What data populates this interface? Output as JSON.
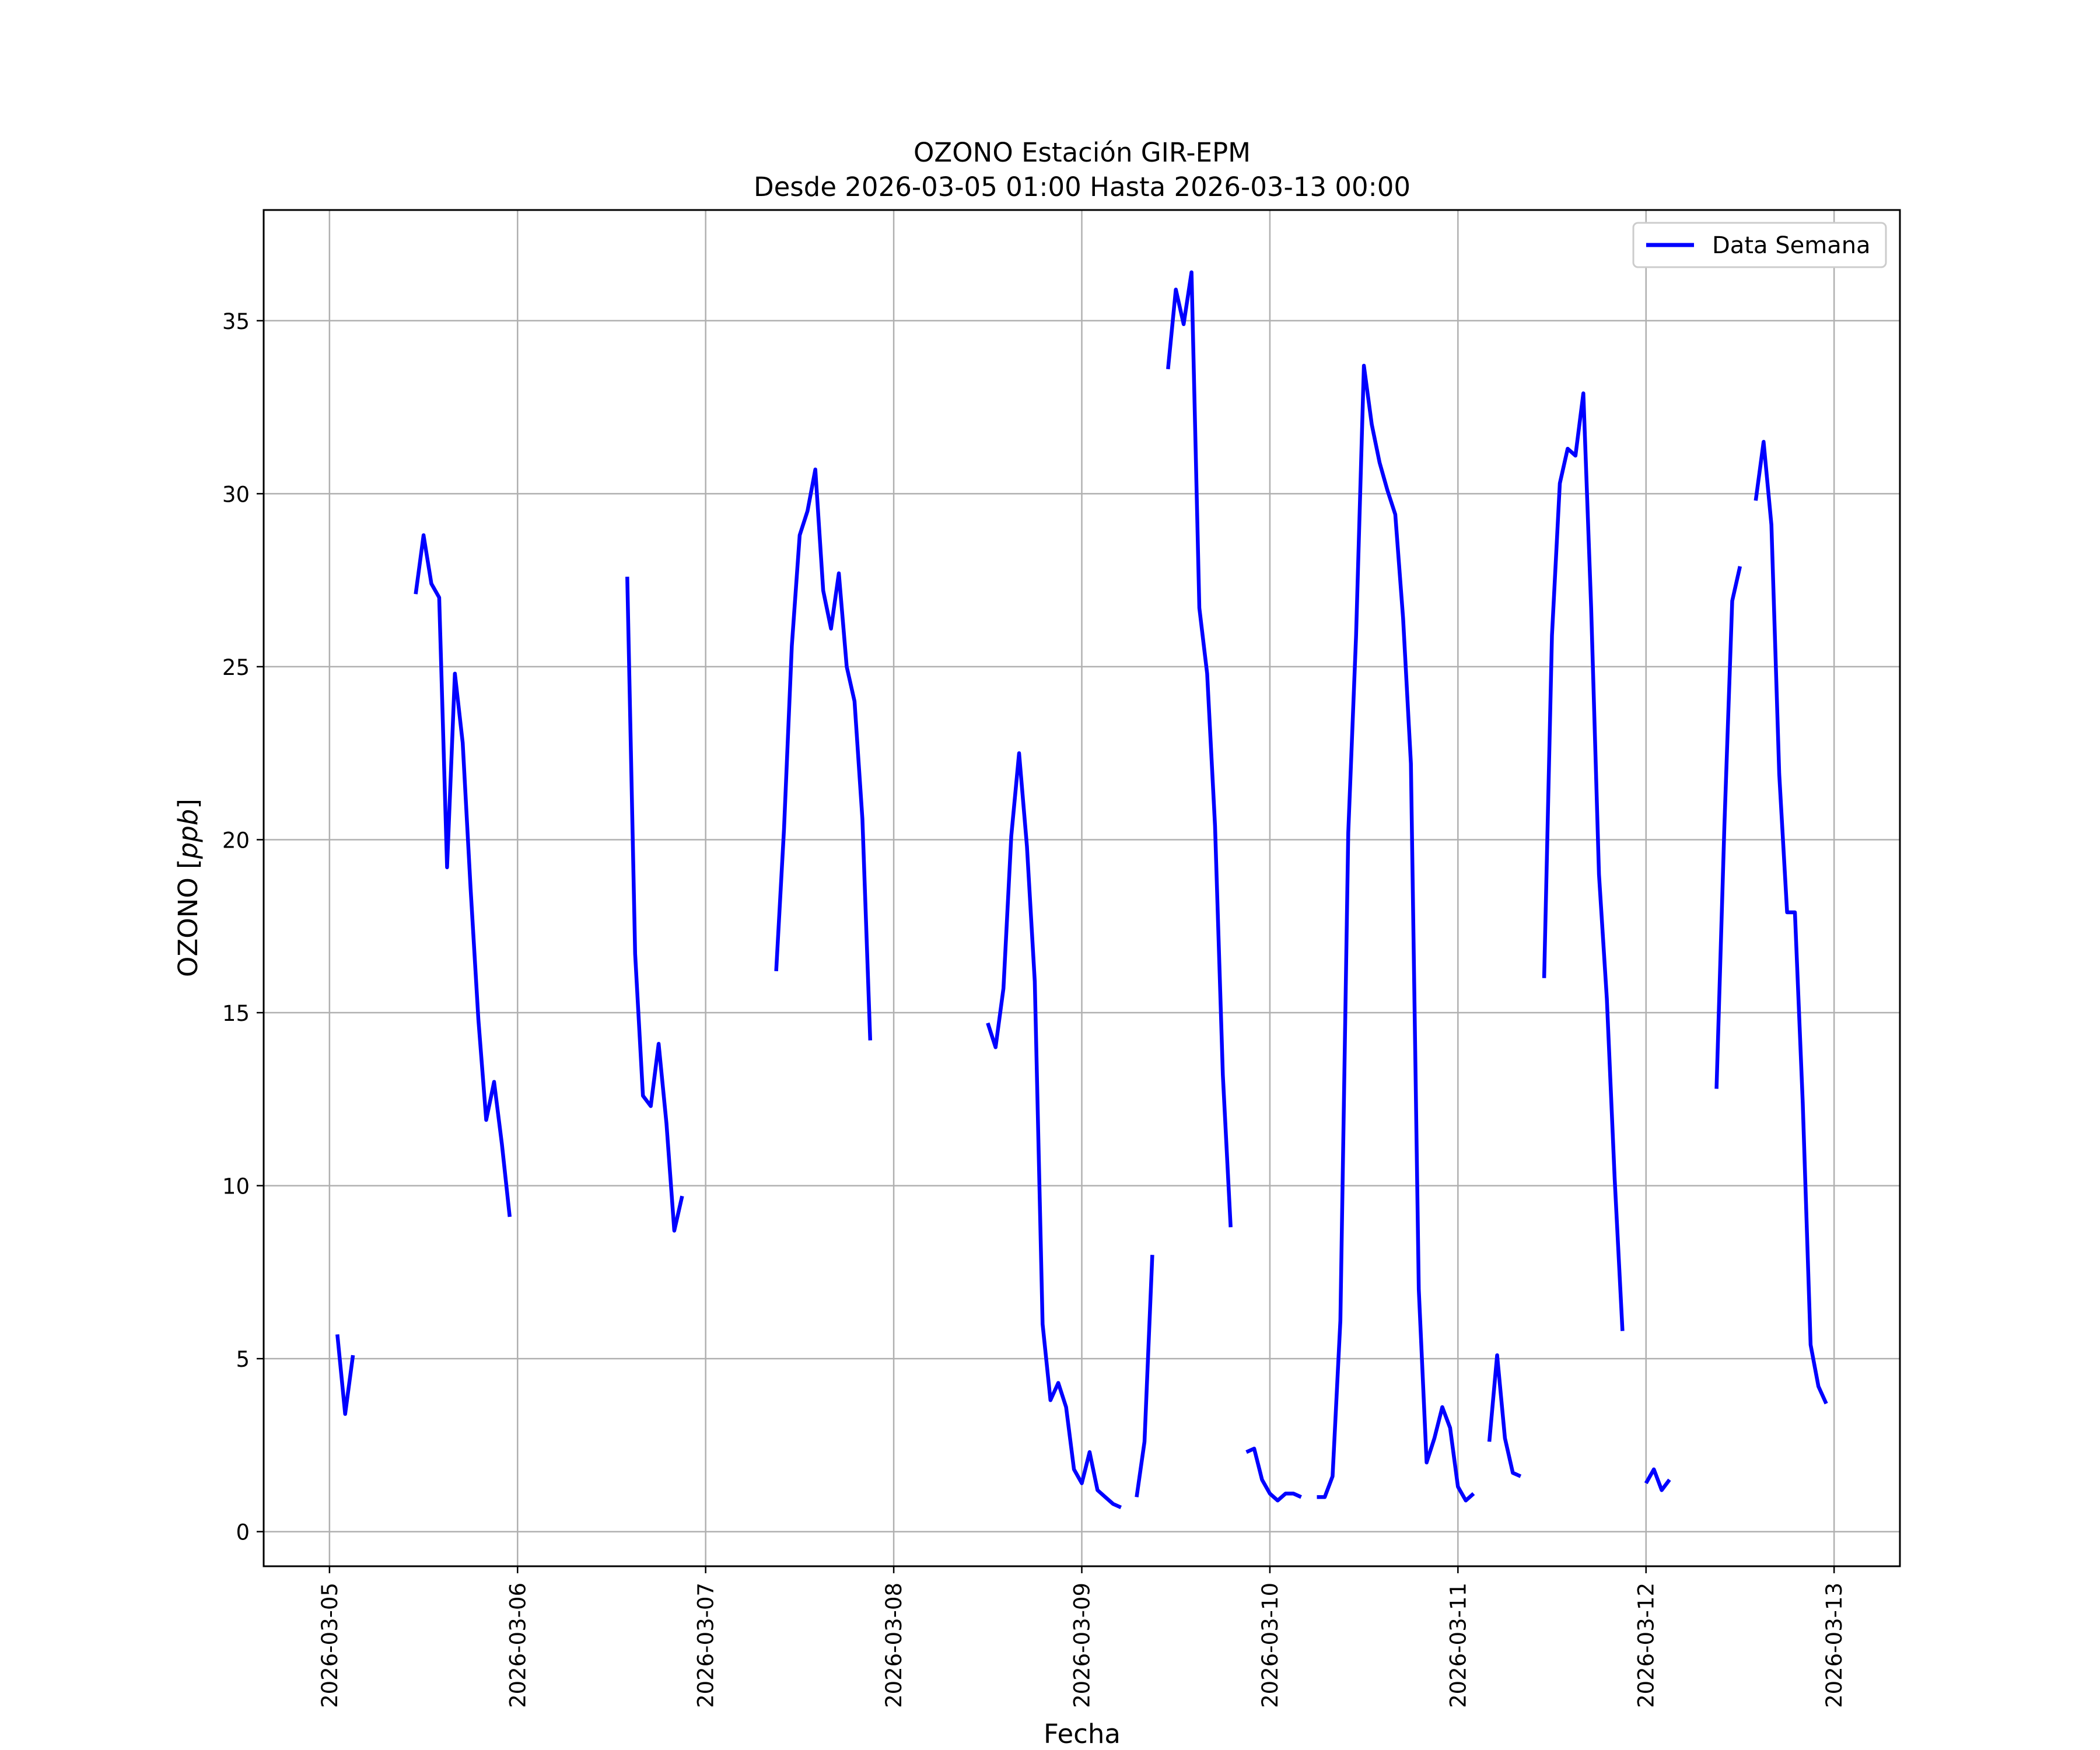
{
  "chart_data": {
    "type": "line",
    "title": "OZONO Estación GIR-EPM",
    "subtitle": "Desde 2026-03-05 01:00 Hasta 2026-03-13 00:00",
    "xlabel": "Fecha",
    "ylabel": "OZONO [ppb]",
    "ylabel_prefix": "OZONO [",
    "ylabel_unit": "ppb",
    "ylabel_suffix": "]",
    "x_range_days": [
      -0.35,
      8.35
    ],
    "ylim": [
      -1.0,
      38.2
    ],
    "yticks": [
      0,
      5,
      10,
      15,
      20,
      25,
      30,
      35
    ],
    "xticks": [
      "2026-03-05",
      "2026-03-06",
      "2026-03-07",
      "2026-03-08",
      "2026-03-09",
      "2026-03-10",
      "2026-03-11",
      "2026-03-12",
      "2026-03-13"
    ],
    "grid": true,
    "legend_position": "top-right",
    "series": [
      {
        "name": "Data Semana",
        "color": "#0000ff",
        "points": [
          [
            "2026-03-05 01:00",
            5.7
          ],
          [
            "2026-03-05 02:00",
            3.4
          ],
          [
            "2026-03-05 03:00",
            5.1
          ],
          [
            "2026-03-05 11:00",
            27.1
          ],
          [
            "2026-03-05 12:00",
            28.8
          ],
          [
            "2026-03-05 13:00",
            27.4
          ],
          [
            "2026-03-05 14:00",
            27.0
          ],
          [
            "2026-03-05 15:00",
            19.2
          ],
          [
            "2026-03-05 16:00",
            24.8
          ],
          [
            "2026-03-05 17:00",
            22.8
          ],
          [
            "2026-03-05 18:00",
            18.6
          ],
          [
            "2026-03-05 19:00",
            14.8
          ],
          [
            "2026-03-05 20:00",
            11.9
          ],
          [
            "2026-03-05 21:00",
            13.0
          ],
          [
            "2026-03-05 22:00",
            11.2
          ],
          [
            "2026-03-05 23:00",
            9.1
          ],
          [
            "2026-03-06 14:00",
            27.6
          ],
          [
            "2026-03-06 15:00",
            16.7
          ],
          [
            "2026-03-06 16:00",
            12.6
          ],
          [
            "2026-03-06 17:00",
            12.3
          ],
          [
            "2026-03-06 18:00",
            14.1
          ],
          [
            "2026-03-06 19:00",
            11.8
          ],
          [
            "2026-03-06 20:00",
            8.7
          ],
          [
            "2026-03-06 21:00",
            9.7
          ],
          [
            "2026-03-07 09:00",
            16.2
          ],
          [
            "2026-03-07 10:00",
            20.3
          ],
          [
            "2026-03-07 11:00",
            25.6
          ],
          [
            "2026-03-07 12:00",
            28.8
          ],
          [
            "2026-03-07 13:00",
            29.5
          ],
          [
            "2026-03-07 14:00",
            30.7
          ],
          [
            "2026-03-07 15:00",
            27.2
          ],
          [
            "2026-03-07 16:00",
            26.1
          ],
          [
            "2026-03-07 17:00",
            27.7
          ],
          [
            "2026-03-07 18:00",
            25.0
          ],
          [
            "2026-03-07 19:00",
            24.0
          ],
          [
            "2026-03-07 20:00",
            20.6
          ],
          [
            "2026-03-07 21:00",
            14.2
          ],
          [
            "2026-03-08 12:00",
            14.7
          ],
          [
            "2026-03-08 13:00",
            14.0
          ],
          [
            "2026-03-08 14:00",
            15.7
          ],
          [
            "2026-03-08 15:00",
            20.1
          ],
          [
            "2026-03-08 16:00",
            22.5
          ],
          [
            "2026-03-08 17:00",
            19.8
          ],
          [
            "2026-03-08 18:00",
            15.9
          ],
          [
            "2026-03-08 19:00",
            6.0
          ],
          [
            "2026-03-08 20:00",
            3.8
          ],
          [
            "2026-03-08 21:00",
            4.3
          ],
          [
            "2026-03-08 22:00",
            3.6
          ],
          [
            "2026-03-08 23:00",
            1.8
          ],
          [
            "2026-03-09 00:00",
            1.4
          ],
          [
            "2026-03-09 01:00",
            2.3
          ],
          [
            "2026-03-09 02:00",
            1.2
          ],
          [
            "2026-03-09 03:00",
            1.0
          ],
          [
            "2026-03-09 04:00",
            0.8
          ],
          [
            "2026-03-09 05:00",
            0.7
          ],
          [
            "2026-03-09 07:00",
            1.0
          ],
          [
            "2026-03-09 08:00",
            2.6
          ],
          [
            "2026-03-09 09:00",
            8.0
          ],
          [
            "2026-03-09 11:00",
            33.6
          ],
          [
            "2026-03-09 12:00",
            35.9
          ],
          [
            "2026-03-09 13:00",
            34.9
          ],
          [
            "2026-03-09 14:00",
            36.4
          ],
          [
            "2026-03-09 15:00",
            26.7
          ],
          [
            "2026-03-09 16:00",
            24.8
          ],
          [
            "2026-03-09 17:00",
            20.4
          ],
          [
            "2026-03-09 18:00",
            13.2
          ],
          [
            "2026-03-09 19:00",
            8.8
          ],
          [
            "2026-03-09 21:00",
            2.3
          ],
          [
            "2026-03-09 22:00",
            2.4
          ],
          [
            "2026-03-09 23:00",
            1.5
          ],
          [
            "2026-03-10 00:00",
            1.1
          ],
          [
            "2026-03-10 01:00",
            0.9
          ],
          [
            "2026-03-10 02:00",
            1.1
          ],
          [
            "2026-03-10 03:00",
            1.1
          ],
          [
            "2026-03-10 04:00",
            1.0
          ],
          [
            "2026-03-10 06:00",
            1.0
          ],
          [
            "2026-03-10 07:00",
            1.0
          ],
          [
            "2026-03-10 08:00",
            1.6
          ],
          [
            "2026-03-10 09:00",
            6.1
          ],
          [
            "2026-03-10 10:00",
            20.2
          ],
          [
            "2026-03-10 11:00",
            25.9
          ],
          [
            "2026-03-10 12:00",
            33.7
          ],
          [
            "2026-03-10 13:00",
            32.0
          ],
          [
            "2026-03-10 14:00",
            30.9
          ],
          [
            "2026-03-10 15:00",
            30.1
          ],
          [
            "2026-03-10 16:00",
            29.4
          ],
          [
            "2026-03-10 17:00",
            26.4
          ],
          [
            "2026-03-10 18:00",
            22.2
          ],
          [
            "2026-03-10 19:00",
            7.0
          ],
          [
            "2026-03-10 20:00",
            2.0
          ],
          [
            "2026-03-10 21:00",
            2.7
          ],
          [
            "2026-03-10 22:00",
            3.6
          ],
          [
            "2026-03-10 23:00",
            3.0
          ],
          [
            "2026-03-11 00:00",
            1.3
          ],
          [
            "2026-03-11 01:00",
            0.9
          ],
          [
            "2026-03-11 02:00",
            1.1
          ],
          [
            "2026-03-11 04:00",
            2.6
          ],
          [
            "2026-03-11 05:00",
            5.1
          ],
          [
            "2026-03-11 06:00",
            2.7
          ],
          [
            "2026-03-11 07:00",
            1.7
          ],
          [
            "2026-03-11 08:00",
            1.6
          ],
          [
            "2026-03-11 11:00",
            16.0
          ],
          [
            "2026-03-11 12:00",
            25.9
          ],
          [
            "2026-03-11 13:00",
            30.3
          ],
          [
            "2026-03-11 14:00",
            31.3
          ],
          [
            "2026-03-11 15:00",
            31.1
          ],
          [
            "2026-03-11 16:00",
            32.9
          ],
          [
            "2026-03-11 17:00",
            26.7
          ],
          [
            "2026-03-11 18:00",
            19.0
          ],
          [
            "2026-03-11 19:00",
            15.4
          ],
          [
            "2026-03-11 20:00",
            10.2
          ],
          [
            "2026-03-11 21:00",
            5.8
          ],
          [
            "2026-03-12 00:00",
            1.4
          ],
          [
            "2026-03-12 01:00",
            1.8
          ],
          [
            "2026-03-12 02:00",
            1.2
          ],
          [
            "2026-03-12 03:00",
            1.5
          ],
          [
            "2026-03-12 09:00",
            12.8
          ],
          [
            "2026-03-12 10:00",
            20.4
          ],
          [
            "2026-03-12 11:00",
            26.9
          ],
          [
            "2026-03-12 12:00",
            27.9
          ],
          [
            "2026-03-12 14:00",
            29.8
          ],
          [
            "2026-03-12 15:00",
            31.5
          ],
          [
            "2026-03-12 16:00",
            29.1
          ],
          [
            "2026-03-12 17:00",
            21.9
          ],
          [
            "2026-03-12 18:00",
            17.9
          ],
          [
            "2026-03-12 19:00",
            17.9
          ],
          [
            "2026-03-12 20:00",
            12.4
          ],
          [
            "2026-03-12 21:00",
            5.4
          ],
          [
            "2026-03-12 22:00",
            4.2
          ],
          [
            "2026-03-12 23:00",
            3.7
          ]
        ]
      }
    ]
  }
}
